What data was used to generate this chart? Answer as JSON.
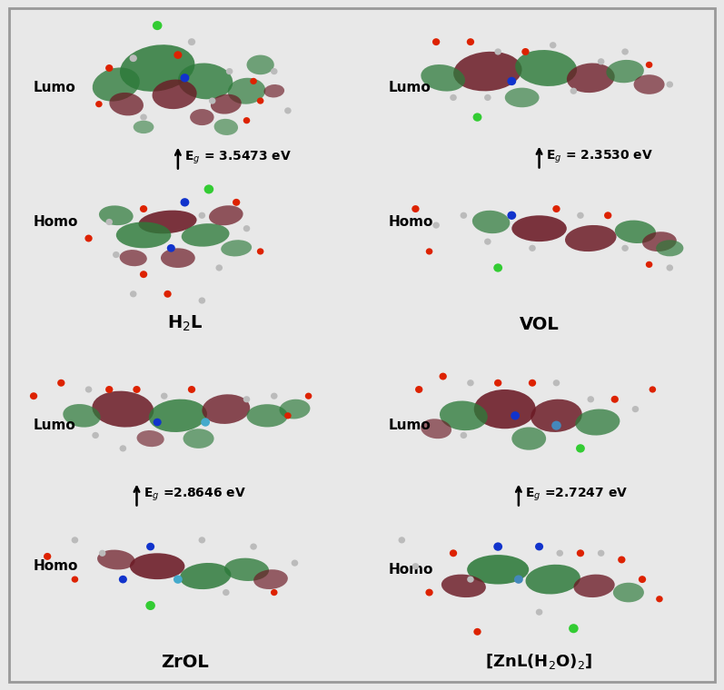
{
  "figure_bg": "#e8e8e8",
  "panel_bg": "#ffffff",
  "border_color": "#999999",
  "green_color": "#2d7a3a",
  "maroon_color": "#6b1a25",
  "titles": {
    "H2L": "H$_2$L",
    "VOL": "VOL",
    "ZrOL": "ZrOL",
    "ZnL": "[ZnL(H$_2$O)$_2$]"
  },
  "eg_labels": {
    "H2L": "E$_g$ = 3.5473 eV",
    "VOL": "E$_g$ = 2.3530 eV",
    "ZrOL": "E$_g$ =2.8646 eV",
    "ZnL": "E$_g$ =2.7247 eV"
  },
  "title_fontsize": 14,
  "label_fontsize": 11,
  "eg_fontsize": 10
}
